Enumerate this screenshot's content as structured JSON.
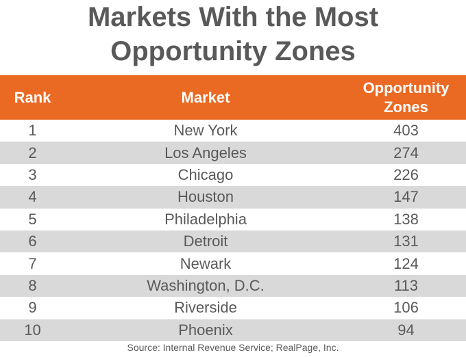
{
  "title": "Markets With the Most Opportunity Zones",
  "colors": {
    "header_bg": "#ea6a24",
    "header_text": "#ffffff",
    "alt_row_bg": "#d9d9d9",
    "text": "#595959"
  },
  "table": {
    "headers": {
      "rank": "Rank",
      "market": "Market",
      "zones": "Opportunity Zones"
    }
  },
  "chart_data": {
    "type": "table",
    "title": "Markets With the Most Opportunity Zones",
    "columns": [
      "Rank",
      "Market",
      "Opportunity Zones"
    ],
    "rows": [
      {
        "rank": "1",
        "market": "New York",
        "zones": "403"
      },
      {
        "rank": "2",
        "market": "Los Angeles",
        "zones": "274"
      },
      {
        "rank": "3",
        "market": "Chicago",
        "zones": "226"
      },
      {
        "rank": "4",
        "market": "Houston",
        "zones": "147"
      },
      {
        "rank": "5",
        "market": "Philadelphia",
        "zones": "138"
      },
      {
        "rank": "6",
        "market": "Detroit",
        "zones": "131"
      },
      {
        "rank": "7",
        "market": "Newark",
        "zones": "124"
      },
      {
        "rank": "8",
        "market": "Washington, D.C.",
        "zones": "113"
      },
      {
        "rank": "9",
        "market": "Riverside",
        "zones": "106"
      },
      {
        "rank": "10",
        "market": "Phoenix",
        "zones": "94"
      }
    ]
  },
  "source": "Source: Internal Revenue Service; RealPage, Inc."
}
